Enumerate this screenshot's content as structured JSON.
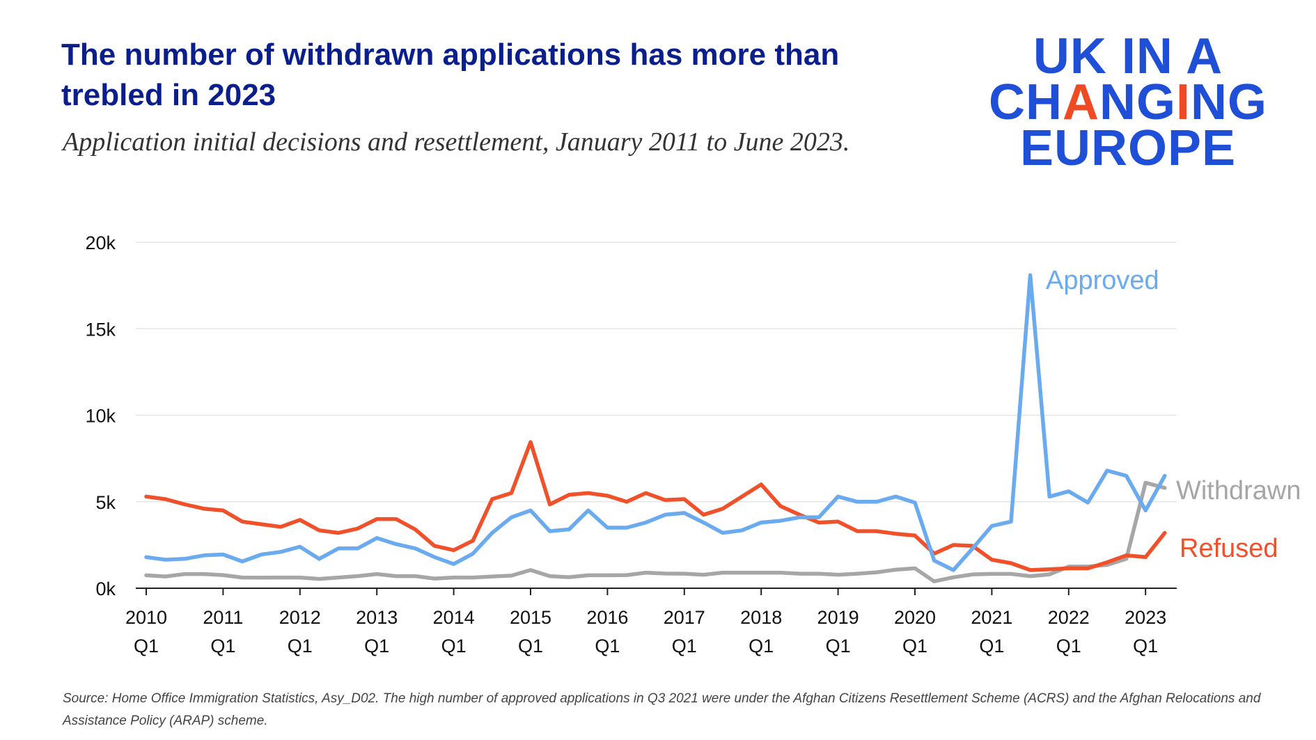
{
  "header": {
    "title": "The number of withdrawn applications has more than trebled in 2023",
    "subtitle": "Application initial decisions and resettlement, January 2011 to June 2023."
  },
  "logo": {
    "line1": "UK IN A",
    "line2_pre": "CH",
    "line2_accent": "A",
    "line2_mid": "NG",
    "line2_accent2": "I",
    "line2_post": "NG",
    "line3": "EUROPE"
  },
  "source": "Source: Home Office Immigration Statistics, Asy_D02. The  high number of approved applications in Q3 2021 were under the Afghan Citizens Resettlement Scheme (ACRS) and the Afghan Relocations and Assistance Policy (ARAP) scheme.",
  "colors": {
    "approved": "#6aaaee",
    "refused": "#f0502a",
    "withdrawn": "#a6a6a6",
    "title": "#0a1e8c",
    "logo": "#1f4fd6",
    "logo_accent": "#f04a24",
    "grid": "#e6e6e6"
  },
  "chart_data": {
    "type": "line",
    "title": "",
    "xlabel": "",
    "ylabel": "",
    "ylim": [
      0,
      20000
    ],
    "yticks": [
      0,
      5000,
      10000,
      15000,
      20000
    ],
    "ytick_labels": [
      "0k",
      "5k",
      "10k",
      "15k",
      "20k"
    ],
    "xtick_labels": [
      [
        "2010",
        "Q1"
      ],
      [
        "2011",
        "Q1"
      ],
      [
        "2012",
        "Q1"
      ],
      [
        "2013",
        "Q1"
      ],
      [
        "2014",
        "Q1"
      ],
      [
        "2015",
        "Q1"
      ],
      [
        "2016",
        "Q1"
      ],
      [
        "2017",
        "Q1"
      ],
      [
        "2018",
        "Q1"
      ],
      [
        "2019",
        "Q1"
      ],
      [
        "2020",
        "Q1"
      ],
      [
        "2021",
        "Q1"
      ],
      [
        "2022",
        "Q1"
      ],
      [
        "2023",
        "Q1"
      ]
    ],
    "x": [
      "2010 Q1",
      "2010 Q2",
      "2010 Q3",
      "2010 Q4",
      "2011 Q1",
      "2011 Q2",
      "2011 Q3",
      "2011 Q4",
      "2012 Q1",
      "2012 Q2",
      "2012 Q3",
      "2012 Q4",
      "2013 Q1",
      "2013 Q2",
      "2013 Q3",
      "2013 Q4",
      "2014 Q1",
      "2014 Q2",
      "2014 Q3",
      "2014 Q4",
      "2015 Q1",
      "2015 Q2",
      "2015 Q3",
      "2015 Q4",
      "2016 Q1",
      "2016 Q2",
      "2016 Q3",
      "2016 Q4",
      "2017 Q1",
      "2017 Q2",
      "2017 Q3",
      "2017 Q4",
      "2018 Q1",
      "2018 Q2",
      "2018 Q3",
      "2018 Q4",
      "2019 Q1",
      "2019 Q2",
      "2019 Q3",
      "2019 Q4",
      "2020 Q1",
      "2020 Q2",
      "2020 Q3",
      "2020 Q4",
      "2021 Q1",
      "2021 Q2",
      "2021 Q3",
      "2021 Q4",
      "2022 Q1",
      "2022 Q2",
      "2022 Q3",
      "2022 Q4",
      "2023 Q1",
      "2023 Q2"
    ],
    "grid": true,
    "legend": "direct labels at line ends",
    "series": [
      {
        "name": "Approved",
        "color": "#6aaaee",
        "values": [
          1800,
          1650,
          1700,
          1900,
          1950,
          1550,
          1950,
          2100,
          2400,
          1700,
          2300,
          2300,
          2900,
          2550,
          2300,
          1800,
          1400,
          2000,
          3200,
          4100,
          4500,
          3300,
          3400,
          4500,
          3500,
          3500,
          3800,
          4250,
          4350,
          3800,
          3200,
          3350,
          3800,
          3900,
          4100,
          4100,
          5300,
          5000,
          5000,
          5300,
          4950,
          1600,
          1050,
          2300,
          3600,
          3850,
          18100,
          5300,
          5600,
          4950,
          6800,
          6500,
          4500,
          6500
        ]
      },
      {
        "name": "Refused",
        "color": "#f0502a",
        "values": [
          5300,
          5150,
          4850,
          4600,
          4500,
          3850,
          3700,
          3550,
          3950,
          3350,
          3200,
          3450,
          4000,
          4000,
          3400,
          2450,
          2200,
          2750,
          5150,
          5500,
          8450,
          4850,
          5400,
          5500,
          5350,
          5000,
          5500,
          5100,
          5150,
          4250,
          4600,
          5300,
          6000,
          4750,
          4250,
          3800,
          3850,
          3300,
          3300,
          3150,
          3050,
          2000,
          2500,
          2450,
          1650,
          1450,
          1050,
          1100,
          1150,
          1150,
          1500,
          1900,
          1800,
          3200
        ]
      },
      {
        "name": "Withdrawn",
        "color": "#a6a6a6",
        "values": [
          750,
          680,
          820,
          820,
          760,
          620,
          610,
          620,
          620,
          540,
          620,
          700,
          820,
          700,
          700,
          560,
          620,
          620,
          680,
          730,
          1050,
          700,
          640,
          750,
          750,
          760,
          900,
          850,
          840,
          780,
          900,
          900,
          900,
          900,
          840,
          840,
          780,
          840,
          920,
          1070,
          1150,
          400,
          630,
          800,
          830,
          830,
          700,
          800,
          1250,
          1250,
          1350,
          1700,
          6100,
          5800
        ]
      }
    ]
  }
}
